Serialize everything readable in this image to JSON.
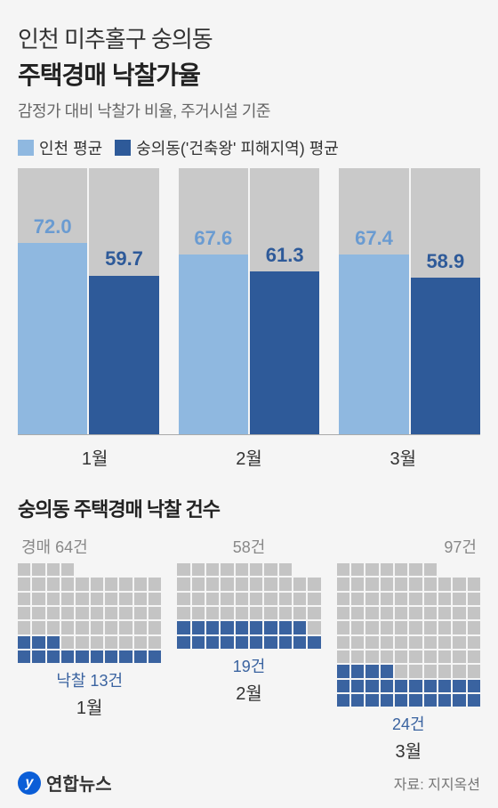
{
  "header": {
    "line1": "인천 미추홀구 숭의동",
    "line2": "주택경매 낙찰가율",
    "subtitle": "감정가 대비 낙찰가 비율, 주거시설 기준"
  },
  "legend": {
    "series1": {
      "label": "인천 평균",
      "color": "#8fb8e0"
    },
    "series2": {
      "label": "숭의동('건축왕' 피해지역) 평균",
      "color": "#2e5a99"
    }
  },
  "chart1": {
    "type": "bar",
    "ylim": [
      0,
      100
    ],
    "bar_bg_color": "#c9c9c9",
    "background_color": "#f5f5f5",
    "value_label_colors": {
      "series1": "#6a9bd1",
      "series2": "#2e5a99"
    },
    "categories": [
      "1월",
      "2월",
      "3월"
    ],
    "series1_values": [
      72.0,
      67.6,
      67.4
    ],
    "series2_values": [
      59.7,
      61.3,
      58.9
    ],
    "series1_labels": [
      "72.0",
      "67.6",
      "67.4"
    ],
    "series2_labels": [
      "59.7",
      "61.3",
      "58.9"
    ]
  },
  "chart2": {
    "title": "숭의동 주택경매 낙찰 건수",
    "type": "pictogram",
    "grid_cols": 10,
    "cell_gap": 2,
    "colors": {
      "total": "#c4c4c4",
      "win": "#3a63a0",
      "label_total": "#888888",
      "label_win": "#3a63a0"
    },
    "top_prefix": "경매 ",
    "bottom_prefix": "낙찰 ",
    "unit": "건",
    "months": [
      {
        "month": "1월",
        "total": 64,
        "win": 13,
        "top_label": "경매 64건",
        "bottom_label": "낙찰 13건",
        "top_align": "left"
      },
      {
        "month": "2월",
        "total": 58,
        "win": 19,
        "top_label": "58건",
        "bottom_label": "19건",
        "top_align": "center"
      },
      {
        "month": "3월",
        "total": 97,
        "win": 24,
        "top_label": "97건",
        "bottom_label": "24건",
        "top_align": "right"
      }
    ]
  },
  "footer": {
    "brand_glyph": "y",
    "brand_text": "연합뉴스",
    "source": "자료: 지지옥션"
  }
}
